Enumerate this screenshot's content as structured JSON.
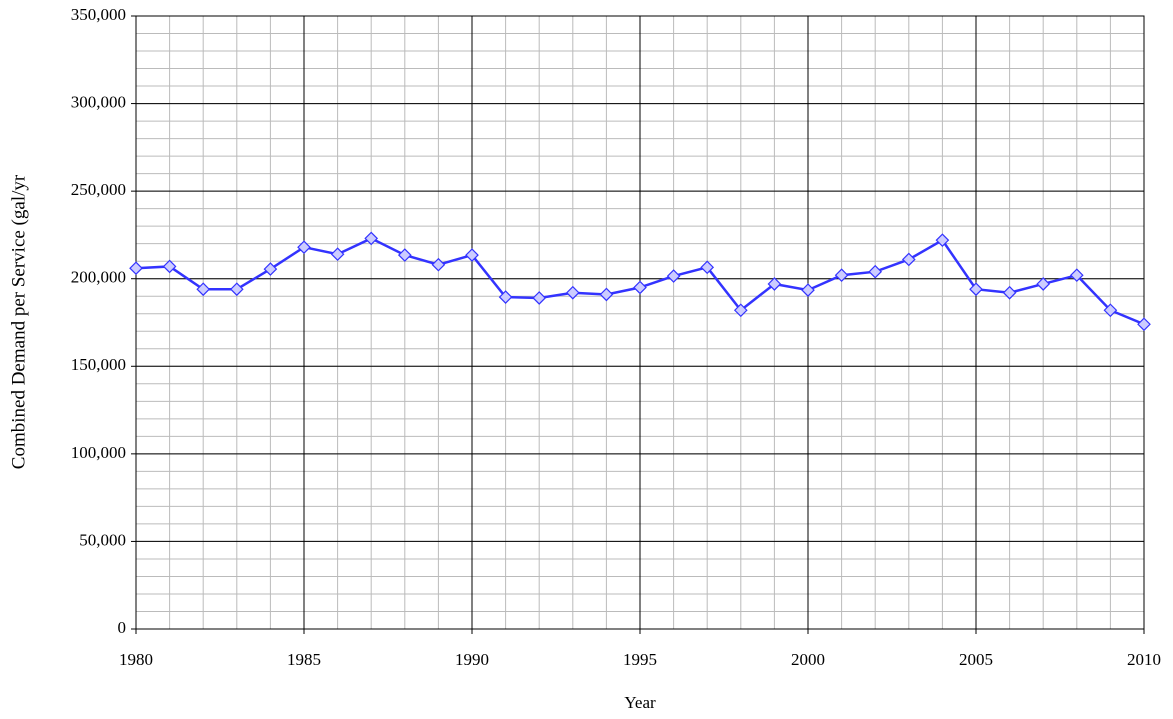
{
  "chart_data": {
    "type": "line",
    "x_label": "Year",
    "y_label": "Combined Demand per Service (gal/yr",
    "x": [
      1980,
      1981,
      1982,
      1983,
      1984,
      1985,
      1986,
      1987,
      1988,
      1989,
      1990,
      1991,
      1992,
      1993,
      1994,
      1995,
      1996,
      1997,
      1998,
      1999,
      2000,
      2001,
      2002,
      2003,
      2004,
      2005,
      2006,
      2007,
      2008,
      2009,
      2010
    ],
    "series": [
      {
        "name": "Combined Demand per Service",
        "color": "#3333ff",
        "marker_fill": "#ccccff",
        "values": [
          206000,
          207000,
          194000,
          194000,
          205500,
          218000,
          214000,
          223000,
          213500,
          208000,
          213500,
          189500,
          189000,
          192000,
          191000,
          195000,
          201500,
          206500,
          182000,
          197000,
          193500,
          202000,
          204000,
          211000,
          222000,
          194000,
          192000,
          197000,
          202000,
          182000,
          174000
        ]
      }
    ],
    "xlim": [
      1980,
      2010
    ],
    "xticks": [
      1980,
      1985,
      1990,
      1995,
      2000,
      2005,
      2010
    ],
    "ylim": [
      0,
      350000
    ],
    "yticks": [
      0,
      {
        "value": 50000,
        "label": "50,000"
      },
      {
        "value": 100000,
        "label": "100,000"
      },
      {
        "value": 150000,
        "label": "150,000"
      },
      {
        "value": 200000,
        "label": "200,000"
      },
      {
        "value": 250000,
        "label": "250,000"
      },
      {
        "value": 300000,
        "label": "300,000"
      },
      {
        "value": 350000,
        "label": "350,000"
      }
    ],
    "grid": true,
    "minor_grid": {
      "x_step": 1,
      "y_step": 10000
    }
  }
}
